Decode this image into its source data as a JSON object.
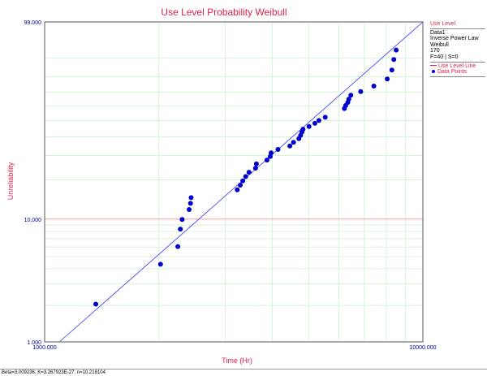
{
  "chart_data": {
    "type": "scatter",
    "title": "Use Level Probability Weibull",
    "xlabel": "Time (Hr)",
    "ylabel": "Unreliability",
    "x_scale": "log",
    "y_scale": "weibull",
    "xlim": [
      1000,
      10000
    ],
    "ylim": [
      1,
      99
    ],
    "x_tick_labels": [
      "1000.000",
      "10000.000"
    ],
    "y_tick_labels": [
      "1.000",
      "10.000",
      "99.000"
    ],
    "grid": true,
    "legend_position": "right",
    "colors": {
      "title": "#e0204a",
      "axis_labels": "#e0204a",
      "tick_labels": "#000099",
      "points": "#0000cc",
      "fit_line": "#3a3aff",
      "use_level_line": "#ff6b6b",
      "grid": "#c8f0c8"
    },
    "use_level_line_y": 10,
    "fit_line": [
      [
        1000,
        0.78
      ],
      [
        10000,
        99
      ]
    ],
    "series": [
      {
        "name": "Data Points",
        "points": [
          [
            1365,
            2.05
          ],
          [
            2025,
            4.35
          ],
          [
            2250,
            6.05
          ],
          [
            2285,
            8.35
          ],
          [
            2310,
            9.95
          ],
          [
            2410,
            11.9
          ],
          [
            2430,
            13.3
          ],
          [
            2440,
            14.7
          ],
          [
            3230,
            16.9
          ],
          [
            3290,
            18.3
          ],
          [
            3340,
            19.7
          ],
          [
            3400,
            21.2
          ],
          [
            3470,
            22.8
          ],
          [
            3610,
            24.4
          ],
          [
            3630,
            26.2
          ],
          [
            3870,
            27.9
          ],
          [
            3950,
            29.5
          ],
          [
            3970,
            31.3
          ],
          [
            4140,
            33.0
          ],
          [
            4450,
            34.8
          ],
          [
            4550,
            36.8
          ],
          [
            4700,
            38.9
          ],
          [
            4750,
            40.8
          ],
          [
            4790,
            42.8
          ],
          [
            4820,
            44.6
          ],
          [
            5000,
            46.3
          ],
          [
            5180,
            48.3
          ],
          [
            5310,
            50.2
          ],
          [
            5520,
            52.4
          ],
          [
            6200,
            58.4
          ],
          [
            6250,
            60.5
          ],
          [
            6330,
            62.7
          ],
          [
            6370,
            65.0
          ],
          [
            6450,
            67.7
          ],
          [
            6850,
            70.3
          ],
          [
            7420,
            74.0
          ],
          [
            8050,
            78.7
          ],
          [
            8280,
            84.0
          ],
          [
            8380,
            89.4
          ],
          [
            8500,
            93.2
          ]
        ]
      }
    ]
  },
  "legend": {
    "header": "Use Level",
    "items": [
      "Data1",
      "Inverse Power Law",
      "Weibull",
      "170",
      "F=40 | S=0"
    ],
    "line_label": "Use Level Line",
    "points_label": "Data Points"
  },
  "footer": {
    "params": "Beta=3.009236; K=3.267923E-27; n=10.218104"
  }
}
